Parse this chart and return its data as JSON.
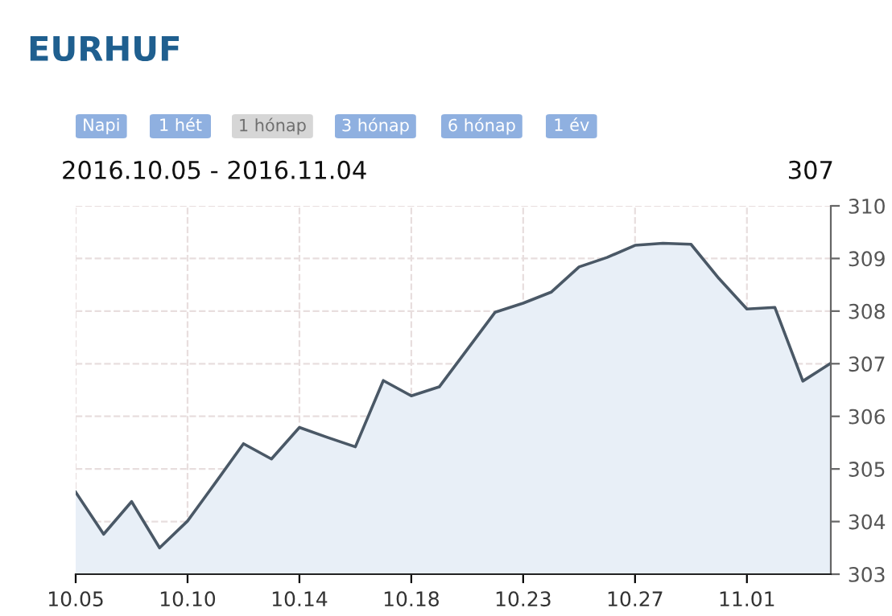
{
  "chart_data": {
    "type": "area",
    "title": "EURHUF",
    "annotations": [
      "Napi",
      "1 hét",
      "1 hónap",
      "3 hónap",
      "6 hónap",
      "1 év",
      "2016.10.05 - 2016.11.04",
      "307"
    ],
    "categories": [
      "10.05",
      null,
      null,
      null,
      "10.10",
      null,
      null,
      null,
      "10.14",
      null,
      null,
      null,
      "10.18",
      null,
      null,
      null,
      "10.23",
      null,
      null,
      null,
      "10.27",
      null,
      null,
      null,
      "11.01",
      null,
      null,
      null
    ],
    "series": [
      {
        "color": "#4a5866",
        "values": [
          304.56,
          303.76,
          304.38,
          303.5,
          304.01,
          304.74,
          305.48,
          305.19,
          305.79,
          305.6,
          305.42,
          306.68,
          306.39,
          306.56,
          307.27,
          307.98,
          308.15,
          308.36,
          308.84,
          309.02,
          309.25,
          309.29,
          309.27,
          308.62,
          308.04,
          308.07,
          306.67,
          307.01
        ]
      }
    ],
    "ylim": [
      303,
      310
    ],
    "yticks": [
      303,
      304,
      305,
      306,
      307,
      308,
      309,
      310
    ],
    "grid": true,
    "marker": "none",
    "line_style": "solid"
  }
}
